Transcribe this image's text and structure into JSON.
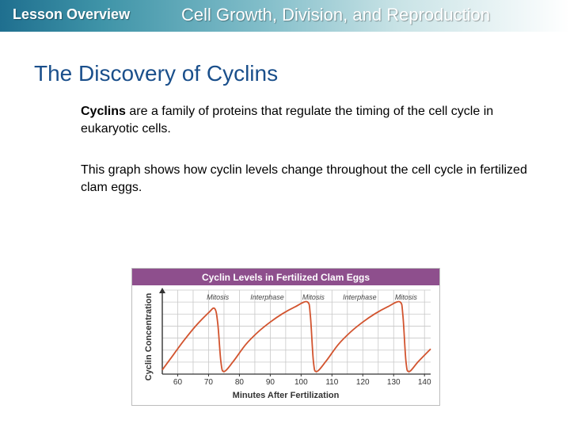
{
  "header": {
    "lesson_label": "Lesson Overview",
    "unit_title": "Cell Growth, Division, and Reproduction"
  },
  "slide": {
    "title": "The Discovery of Cyclins",
    "para1_term": "Cyclins",
    "para1_rest": " are a family of proteins that regulate the timing of the cell cycle in eukaryotic cells.",
    "para2": "This graph shows how cyclin levels change throughout the cell cycle in fertilized clam eggs."
  },
  "colors": {
    "header_blue": "#1f6f8f",
    "title_blue": "#1a4f8b",
    "chart_banner": "#8e4f8d",
    "curve": "#d2542f"
  },
  "chart_data": {
    "type": "line",
    "title": "Cyclin Levels in Fertilized Clam Eggs",
    "xlabel": "Minutes After Fertilization",
    "ylabel": "Cyclin Concentration",
    "x_ticks": [
      60,
      70,
      80,
      90,
      100,
      110,
      120,
      130,
      140
    ],
    "xlim": [
      55,
      142
    ],
    "ylim": [
      0,
      1
    ],
    "grid": true,
    "phases": [
      {
        "label": "Mitosis",
        "center": 73
      },
      {
        "label": "Interphase",
        "center": 89
      },
      {
        "label": "Mitosis",
        "center": 104
      },
      {
        "label": "Interphase",
        "center": 119
      },
      {
        "label": "Mitosis",
        "center": 134
      }
    ],
    "series": [
      {
        "x": [
          55,
          58,
          62,
          66,
          70,
          72,
          73,
          74,
          75,
          78,
          82,
          86,
          90,
          94,
          98,
          102,
          103,
          104,
          105,
          108,
          112,
          116,
          120,
          124,
          128,
          132,
          133,
          134,
          135,
          138,
          142
        ],
        "y": [
          0.05,
          0.2,
          0.4,
          0.58,
          0.73,
          0.78,
          0.6,
          0.15,
          0.03,
          0.15,
          0.35,
          0.5,
          0.62,
          0.72,
          0.8,
          0.86,
          0.7,
          0.15,
          0.03,
          0.15,
          0.35,
          0.5,
          0.62,
          0.72,
          0.8,
          0.86,
          0.7,
          0.15,
          0.03,
          0.15,
          0.3
        ]
      }
    ]
  }
}
